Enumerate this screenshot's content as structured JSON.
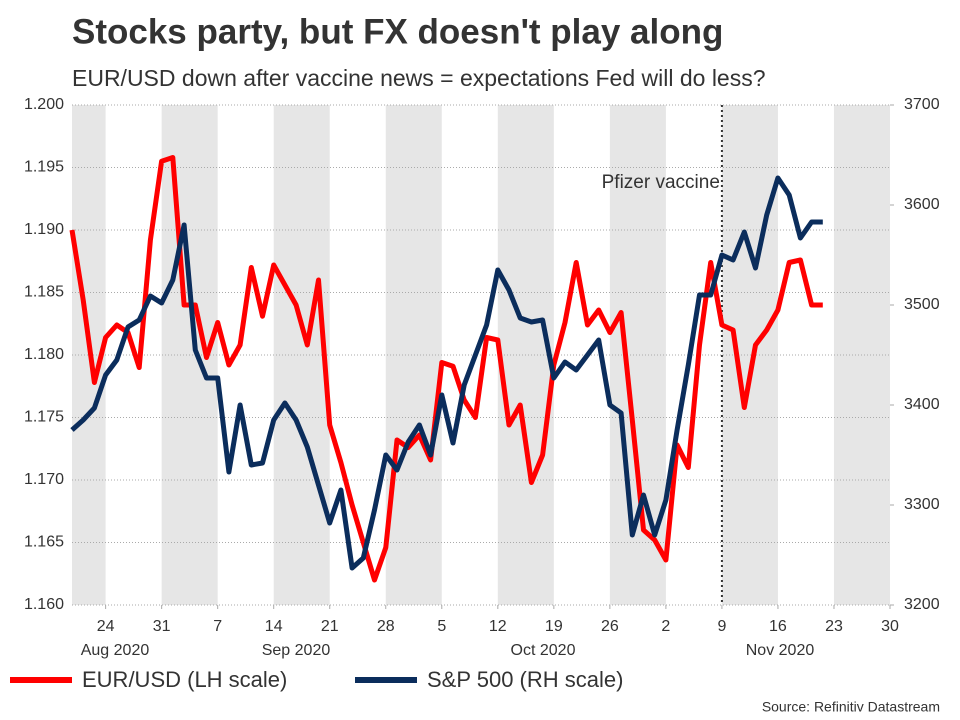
{
  "chart_data": {
    "type": "line",
    "title": "Stocks party, but FX doesn't play along",
    "subtitle": "EUR/USD down after vaccine news = expectations Fed will do less?",
    "x": [
      "2020-08-19",
      "2020-08-20",
      "2020-08-21",
      "2020-08-24",
      "2020-08-25",
      "2020-08-26",
      "2020-08-27",
      "2020-08-28",
      "2020-08-31",
      "2020-09-01",
      "2020-09-02",
      "2020-09-03",
      "2020-09-04",
      "2020-09-07",
      "2020-09-08",
      "2020-09-09",
      "2020-09-10",
      "2020-09-11",
      "2020-09-14",
      "2020-09-15",
      "2020-09-16",
      "2020-09-17",
      "2020-09-18",
      "2020-09-21",
      "2020-09-22",
      "2020-09-23",
      "2020-09-24",
      "2020-09-25",
      "2020-09-28",
      "2020-09-29",
      "2020-09-30",
      "2020-10-01",
      "2020-10-02",
      "2020-10-05",
      "2020-10-06",
      "2020-10-07",
      "2020-10-08",
      "2020-10-09",
      "2020-10-12",
      "2020-10-13",
      "2020-10-14",
      "2020-10-15",
      "2020-10-16",
      "2020-10-19",
      "2020-10-20",
      "2020-10-21",
      "2020-10-22",
      "2020-10-23",
      "2020-10-26",
      "2020-10-27",
      "2020-10-28",
      "2020-10-29",
      "2020-10-30",
      "2020-11-02",
      "2020-11-03",
      "2020-11-04",
      "2020-11-05",
      "2020-11-06",
      "2020-11-09",
      "2020-11-10",
      "2020-11-11",
      "2020-11-12",
      "2020-11-13",
      "2020-11-16",
      "2020-11-17",
      "2020-11-18",
      "2020-11-19",
      "2020-11-20"
    ],
    "series": [
      {
        "name": "EUR/USD (LH scale)",
        "color": "#ff0000",
        "axis": "y",
        "values": [
          1.19,
          1.1844,
          1.1778,
          1.1814,
          1.1824,
          1.1818,
          1.179,
          1.1892,
          1.1955,
          1.1958,
          1.184,
          1.184,
          1.1798,
          1.1826,
          1.1792,
          1.1808,
          1.187,
          1.1831,
          1.1872,
          1.1856,
          1.184,
          1.1808,
          1.186,
          1.1744,
          1.1714,
          1.168,
          1.165,
          1.162,
          1.1646,
          1.1732,
          1.1726,
          1.1736,
          1.1716,
          1.1794,
          1.1791,
          1.1764,
          1.175,
          1.1814,
          1.1812,
          1.1744,
          1.176,
          1.1698,
          1.172,
          1.1792,
          1.1826,
          1.1874,
          1.1824,
          1.1836,
          1.1818,
          1.1834,
          1.1748,
          1.166,
          1.1652,
          1.1636,
          1.1728,
          1.171,
          1.1808,
          1.1874,
          1.1824,
          1.182,
          1.1758,
          1.1808,
          1.182,
          1.1836,
          1.1874,
          1.1876,
          1.184,
          1.184
        ]
      },
      {
        "name": "S&P 500 (RH scale)",
        "color": "#0b2d5c",
        "axis": "y2",
        "values": [
          3375,
          3385,
          3397,
          3430,
          3445,
          3478,
          3485,
          3509,
          3502,
          3525,
          3580,
          3455,
          3427,
          3427,
          3333,
          3400,
          3340,
          3342,
          3385,
          3402,
          3385,
          3358,
          3320,
          3282,
          3315,
          3237,
          3247,
          3295,
          3350,
          3335,
          3363,
          3380,
          3350,
          3410,
          3362,
          3420,
          3450,
          3480,
          3535,
          3515,
          3487,
          3483,
          3485,
          3427,
          3443,
          3435,
          3450,
          3465,
          3400,
          3392,
          3270,
          3310,
          3270,
          3305,
          3375,
          3440,
          3510,
          3510,
          3550,
          3545,
          3573,
          3537,
          3590,
          3627,
          3610,
          3567,
          3583,
          3583
        ]
      }
    ],
    "xlim": [
      "2020-08-19",
      "2020-11-30"
    ],
    "xticks": [
      {
        "value": "2020-08-24",
        "label": "24"
      },
      {
        "value": "2020-08-31",
        "label": "31"
      },
      {
        "value": "2020-09-07",
        "label": "7"
      },
      {
        "value": "2020-09-14",
        "label": "14"
      },
      {
        "value": "2020-09-21",
        "label": "21"
      },
      {
        "value": "2020-09-28",
        "label": "28"
      },
      {
        "value": "2020-10-05",
        "label": "5"
      },
      {
        "value": "2020-10-12",
        "label": "12"
      },
      {
        "value": "2020-10-19",
        "label": "19"
      },
      {
        "value": "2020-10-26",
        "label": "26"
      },
      {
        "value": "2020-11-02",
        "label": "2"
      },
      {
        "value": "2020-11-09",
        "label": "9"
      },
      {
        "value": "2020-11-16",
        "label": "16"
      },
      {
        "value": "2020-11-23",
        "label": "23"
      },
      {
        "value": "2020-11-30",
        "label": "30"
      }
    ],
    "month_labels": [
      "Aug 2020",
      "Sep 2020",
      "Oct 2020",
      "Nov 2020"
    ],
    "ylim": [
      1.16,
      1.2
    ],
    "yticks": [
      {
        "value": 1.16,
        "label": "1.160"
      },
      1.165,
      {
        "value": 1.17,
        "label": "1.170"
      },
      1.175,
      {
        "value": 1.18,
        "label": "1.180"
      },
      1.185,
      {
        "value": 1.19,
        "label": "1.190"
      },
      1.195,
      {
        "value": 1.2,
        "label": "1.200"
      }
    ],
    "y2lim": [
      3200,
      3700
    ],
    "y2ticks": [
      3200,
      3300,
      3400,
      3500,
      3600,
      3700
    ],
    "grid": true,
    "annotation": {
      "text": "Pfizer vaccine",
      "x": "2020-11-09"
    },
    "source": "Source: Refinitiv Datastream"
  }
}
